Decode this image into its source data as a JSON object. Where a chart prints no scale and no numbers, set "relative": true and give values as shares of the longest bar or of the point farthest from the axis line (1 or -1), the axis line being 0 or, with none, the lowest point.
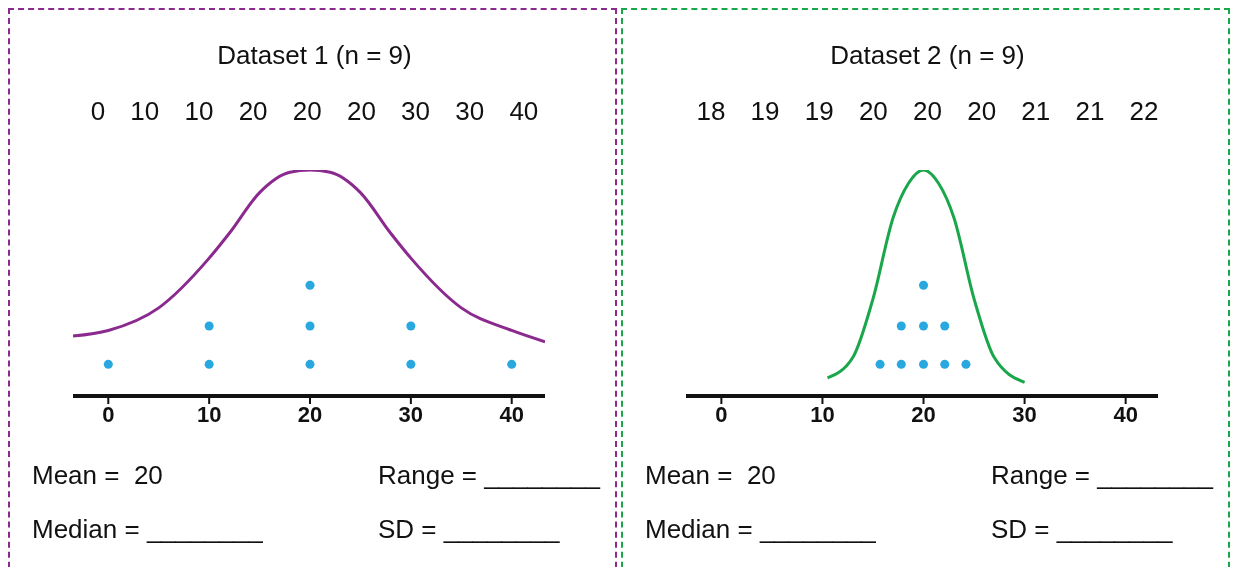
{
  "chart_data": [
    {
      "type": "scatter",
      "title": "Dataset 1 (n = 9)",
      "relative": true,
      "xlim": [
        -3.5,
        43.3
      ],
      "xticks": [
        0,
        10,
        20,
        30,
        40
      ],
      "grid": false,
      "legend": false,
      "annotations": [
        "0 10 10 20 20 20 30 30 40",
        "Mean =  20",
        "Range = ________",
        "Median = ________",
        "SD = ________"
      ],
      "series": [
        {
          "color": "#29a8e0",
          "marker": "circle",
          "x": [
            0,
            10,
            10,
            20,
            20,
            20,
            30,
            30,
            40
          ],
          "values": [
            0.14,
            0.14,
            0.31,
            0.14,
            0.31,
            0.49,
            0.14,
            0.31,
            0.14
          ]
        },
        {
          "type": "line",
          "color": "#8b2a8e",
          "marker": "none",
          "x": [
            -3.5,
            0,
            5,
            10,
            12,
            15,
            18,
            20,
            22,
            25,
            28,
            30,
            35,
            40,
            43.3
          ],
          "values": [
            0.265,
            0.29,
            0.39,
            0.61,
            0.72,
            0.9,
            0.99,
            1,
            0.99,
            0.9,
            0.72,
            0.61,
            0.39,
            0.29,
            0.24
          ]
        }
      ]
    },
    {
      "type": "scatter",
      "title": "Dataset 2 (n = 9)",
      "relative": true,
      "xlim": [
        -3.5,
        43.2
      ],
      "xticks": [
        0,
        10,
        20,
        30,
        40
      ],
      "grid": false,
      "legend": false,
      "annotations": [
        "18 19 19 20 20 20 21 21 22",
        "Mean =  20",
        "Range = ________",
        "Median = ________",
        "SD = ________"
      ],
      "series": [
        {
          "color": "#29a8e0",
          "marker": "circle",
          "x": [
            15.7,
            17.8,
            17.8,
            20,
            20,
            20,
            22.1,
            22.1,
            24.2
          ],
          "values": [
            0.14,
            0.14,
            0.31,
            0.14,
            0.31,
            0.49,
            0.14,
            0.31,
            0.14
          ]
        },
        {
          "type": "line",
          "color": "#1aa64a",
          "marker": "none",
          "x": [
            10.5,
            13,
            15,
            17,
            18.5,
            20,
            21.5,
            23,
            25,
            27,
            30
          ],
          "values": [
            0.08,
            0.17,
            0.43,
            0.79,
            0.94,
            1,
            0.94,
            0.79,
            0.43,
            0.17,
            0.06
          ]
        }
      ]
    }
  ]
}
